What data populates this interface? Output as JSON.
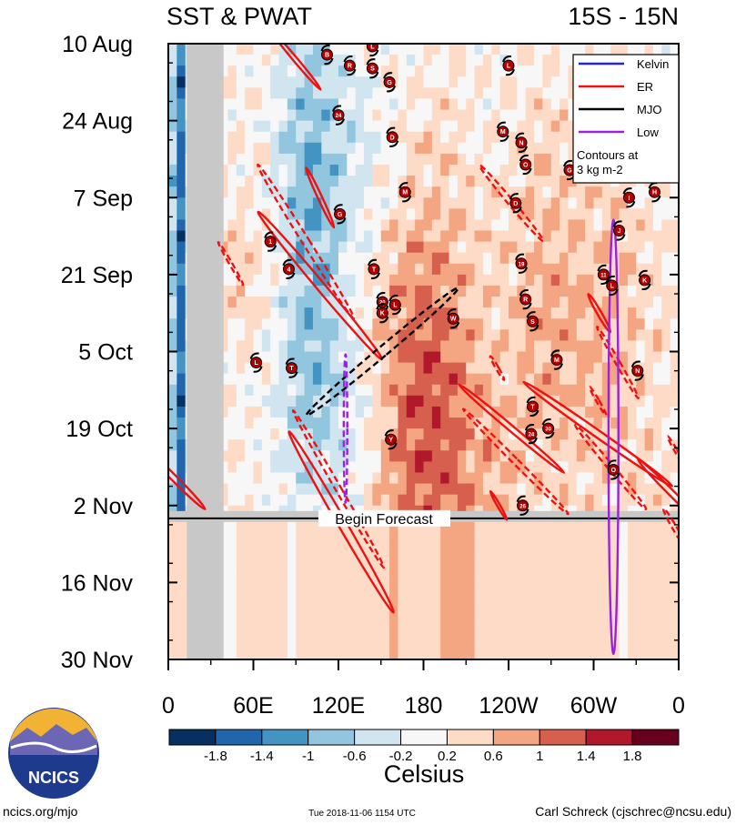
{
  "chart_data": {
    "type": "heatmap",
    "title_left": "SST & PWAT",
    "title_right": "15S - 15N",
    "y_ticks": [
      {
        "label": "10 Aug",
        "day": 0
      },
      {
        "label": "24 Aug",
        "day": 14
      },
      {
        "label": "7 Sep",
        "day": 28
      },
      {
        "label": "21 Sep",
        "day": 42
      },
      {
        "label": "5 Oct",
        "day": 56
      },
      {
        "label": "19 Oct",
        "day": 70
      },
      {
        "label": "2 Nov",
        "day": 84
      },
      {
        "label": "16 Nov",
        "day": 98
      },
      {
        "label": "30 Nov",
        "day": 112
      }
    ],
    "y_range_days": [
      0,
      112
    ],
    "x_ticks": [
      {
        "label": "0",
        "lon": 0
      },
      {
        "label": "60E",
        "lon": 60
      },
      {
        "label": "120E",
        "lon": 120
      },
      {
        "label": "180",
        "lon": 180
      },
      {
        "label": "120W",
        "lon": 240
      },
      {
        "label": "60W",
        "lon": 300
      },
      {
        "label": "0",
        "lon": 360
      }
    ],
    "x_range_lon": [
      0,
      360
    ],
    "forecast_label": "Begin Forecast",
    "forecast_day": 86,
    "land_mask_lon": [
      13,
      39
    ],
    "legend": {
      "entries": [
        {
          "name": "Kelvin",
          "color": "#2222ee"
        },
        {
          "name": "ER",
          "color": "#ee1111"
        },
        {
          "name": "MJO",
          "color": "#000000"
        },
        {
          "name": "Low",
          "color": "#9922dd"
        }
      ],
      "note_line1": "Contours at",
      "note_line2": "3 kg m-2",
      "placement": "top-right"
    },
    "colorbar": {
      "colors": [
        "#053061",
        "#2166ac",
        "#4393c3",
        "#92c5de",
        "#d1e5f0",
        "#f7f7f7",
        "#fddbc7",
        "#f4a582",
        "#d6604d",
        "#b2182b",
        "#67001f"
      ],
      "labels": [
        "-1.8",
        "-1.4",
        "-1",
        "-0.6",
        "-0.2",
        "0.2",
        "0.6",
        "1",
        "1.4",
        "1.8"
      ],
      "unit": "Celsius"
    },
    "contours": [
      {
        "type": "ER",
        "lon": 90,
        "day": 3,
        "len": 14,
        "width": 3,
        "angle": -40,
        "dashed": false
      },
      {
        "type": "ER",
        "lon": 107,
        "day": 28,
        "len": 12,
        "width": 3,
        "angle": -25,
        "dashed": false
      },
      {
        "type": "ER",
        "lon": 97,
        "day": 36,
        "len": 33,
        "width": 5,
        "angle": -32,
        "dashed": true
      },
      {
        "type": "ER",
        "lon": 107,
        "day": 44,
        "len": 35,
        "width": 6,
        "angle": -40,
        "dashed": false
      },
      {
        "type": "ER",
        "lon": 44,
        "day": 40,
        "len": 9,
        "width": 2,
        "angle": -30,
        "dashed": true
      },
      {
        "type": "ER",
        "lon": 120,
        "day": 81,
        "len": 33,
        "width": 4,
        "angle": -30,
        "dashed": true
      },
      {
        "type": "ER",
        "lon": 122,
        "day": 87,
        "len": 38,
        "width": 6,
        "angle": -30,
        "dashed": false
      },
      {
        "type": "ER",
        "lon": 4,
        "day": 79,
        "len": 16,
        "width": 4,
        "angle": -45,
        "dashed": false
      },
      {
        "type": "ER",
        "lon": 242,
        "day": 70,
        "len": 25,
        "width": 4,
        "angle": -50,
        "dashed": false
      },
      {
        "type": "ER",
        "lon": 245,
        "day": 76,
        "len": 27,
        "width": 4,
        "angle": -45,
        "dashed": true
      },
      {
        "type": "ER",
        "lon": 242,
        "day": 29,
        "len": 18,
        "width": 4,
        "angle": -40,
        "dashed": true
      },
      {
        "type": "ER",
        "lon": 232,
        "day": 59,
        "len": 5,
        "width": 2,
        "angle": -30,
        "dashed": true
      },
      {
        "type": "ER",
        "lon": 233,
        "day": 84,
        "len": 6,
        "width": 2,
        "angle": -30,
        "dashed": false
      },
      {
        "type": "ER",
        "lon": 303,
        "day": 71,
        "len": 33,
        "width": 5,
        "angle": -55,
        "dashed": false
      },
      {
        "type": "ER",
        "lon": 312,
        "day": 77,
        "len": 20,
        "width": 4,
        "angle": -40,
        "dashed": true
      },
      {
        "type": "ER",
        "lon": 304,
        "day": 49,
        "len": 8,
        "width": 3,
        "angle": -30,
        "dashed": false
      },
      {
        "type": "ER",
        "lon": 317,
        "day": 58,
        "len": 15,
        "width": 3,
        "angle": -30,
        "dashed": true
      },
      {
        "type": "ER",
        "lon": 303,
        "day": 65,
        "len": 6,
        "width": 2,
        "angle": -30,
        "dashed": true
      },
      {
        "type": "ER",
        "lon": 356,
        "day": 82,
        "len": 18,
        "width": 4,
        "angle": -45,
        "dashed": false
      },
      {
        "type": "ER",
        "lon": 358,
        "day": 74,
        "len": 6,
        "width": 2,
        "angle": -30,
        "dashed": true
      },
      {
        "type": "ER",
        "lon": 357,
        "day": 88,
        "len": 8,
        "width": 3,
        "angle": -30,
        "dashed": true
      },
      {
        "type": "MJO",
        "lon": 151,
        "day": 56,
        "len": 36,
        "width": 7,
        "angle": 50,
        "dashed": true
      },
      {
        "type": "Low",
        "lon": 125,
        "day": 70,
        "len": 27,
        "width": 2.5,
        "angle": 0,
        "dashed": true
      },
      {
        "type": "Low",
        "lon": 314,
        "day": 71.5,
        "len": 79,
        "width": 7,
        "angle": 0,
        "dashed": false
      }
    ],
    "storms": [
      {
        "label": "B",
        "lon": 112,
        "day": 2
      },
      {
        "label": "L",
        "lon": 144,
        "day": 0.5
      },
      {
        "label": "R",
        "lon": 128,
        "day": 4
      },
      {
        "label": "S",
        "lon": 144,
        "day": 4.5
      },
      {
        "label": "G",
        "lon": 156,
        "day": 7
      },
      {
        "label": "L",
        "lon": 240,
        "day": 4
      },
      {
        "label": "24",
        "lon": 120,
        "day": 13
      },
      {
        "label": "D",
        "lon": 158,
        "day": 17
      },
      {
        "label": "M",
        "lon": 236,
        "day": 16
      },
      {
        "label": "N",
        "lon": 249,
        "day": 18
      },
      {
        "label": "O",
        "lon": 252,
        "day": 22
      },
      {
        "label": "M",
        "lon": 167,
        "day": 27
      },
      {
        "label": "G",
        "lon": 121,
        "day": 31
      },
      {
        "label": "D",
        "lon": 245,
        "day": 29
      },
      {
        "label": "G",
        "lon": 283,
        "day": 23
      },
      {
        "label": "I",
        "lon": 325,
        "day": 28
      },
      {
        "label": "H",
        "lon": 343,
        "day": 27
      },
      {
        "label": "1",
        "lon": 72,
        "day": 36
      },
      {
        "label": "4",
        "lon": 85,
        "day": 41
      },
      {
        "label": "T",
        "lon": 145,
        "day": 41
      },
      {
        "label": "19",
        "lon": 249,
        "day": 40
      },
      {
        "label": "J",
        "lon": 318,
        "day": 34
      },
      {
        "label": "11",
        "lon": 307,
        "day": 42
      },
      {
        "label": "L",
        "lon": 313,
        "day": 44
      },
      {
        "label": "K",
        "lon": 336,
        "day": 43
      },
      {
        "label": "20",
        "lon": 151,
        "day": 47
      },
      {
        "label": "K",
        "lon": 151,
        "day": 49
      },
      {
        "label": "L",
        "lon": 160,
        "day": 47.5
      },
      {
        "label": "W",
        "lon": 201,
        "day": 50
      },
      {
        "label": "R",
        "lon": 252,
        "day": 46.5
      },
      {
        "label": "S",
        "lon": 257,
        "day": 50.5
      },
      {
        "label": "L",
        "lon": 62,
        "day": 58
      },
      {
        "label": "T",
        "lon": 87,
        "day": 59
      },
      {
        "label": "M",
        "lon": 274,
        "day": 57.5
      },
      {
        "label": "N",
        "lon": 331,
        "day": 59.5
      },
      {
        "label": "T",
        "lon": 257,
        "day": 66
      },
      {
        "label": "Y",
        "lon": 157,
        "day": 72
      },
      {
        "label": "24",
        "lon": 256,
        "day": 71
      },
      {
        "label": "30",
        "lon": 268,
        "day": 70
      },
      {
        "label": "O",
        "lon": 314,
        "day": 77.5
      },
      {
        "label": "26",
        "lon": 250,
        "day": 84
      }
    ]
  },
  "footer": {
    "logo_text": "NCICS",
    "url": "ncics.org/mjo",
    "timestamp": "Tue 2018-11-06 1154 UTC",
    "author": "Carl Schreck (cjschrec@ncsu.edu)"
  }
}
